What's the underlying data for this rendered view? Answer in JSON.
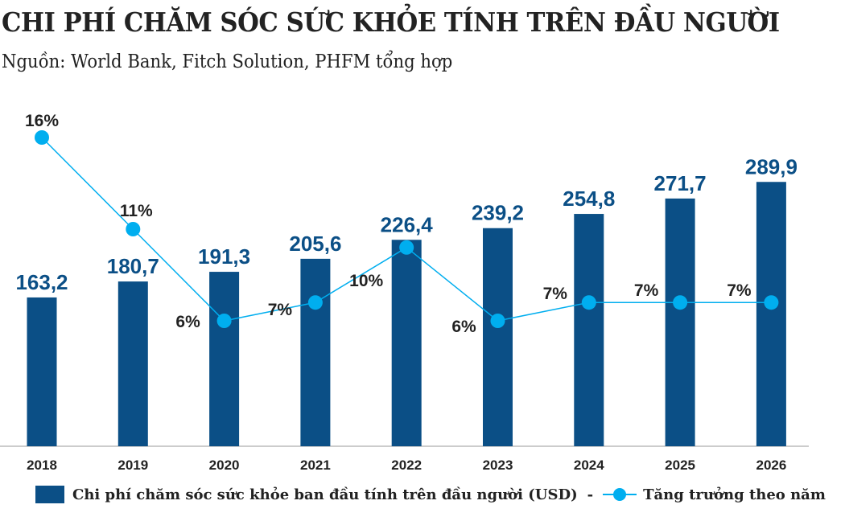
{
  "title": "CHI PHÍ CHĂM SÓC SỨC KHỎE TÍNH TRÊN ĐẦU NGƯỜI",
  "subtitle": "Nguồn: World Bank, Fitch Solution, PHFM tổng hợp",
  "colors": {
    "bar": "#0b4f86",
    "line": "#00aeef",
    "axis": "#999999"
  },
  "chart_data": {
    "type": "bar+line",
    "categories": [
      "2018",
      "2019",
      "2020",
      "2021",
      "2022",
      "2023",
      "2024",
      "2025",
      "2026"
    ],
    "series": [
      {
        "name": "Chi phí chăm sóc sức khỏe ban đầu tính trên đầu người (USD)",
        "type": "bar",
        "values": [
          163.2,
          180.7,
          191.3,
          205.6,
          226.4,
          239.2,
          254.8,
          271.7,
          289.9
        ],
        "labels": [
          "163,2",
          "180,7",
          "191,3",
          "205,6",
          "226,4",
          "239,2",
          "254,8",
          "271,7",
          "289,9"
        ]
      },
      {
        "name": "Tăng trưởng theo năm",
        "type": "line",
        "values": [
          16,
          11,
          6,
          7,
          10,
          6,
          7,
          7,
          7
        ],
        "labels": [
          "16%",
          "11%",
          "6%",
          "7%",
          "10%",
          "6%",
          "7%",
          "7%",
          "7%"
        ]
      }
    ],
    "legend_position": "bottom",
    "grid": false
  },
  "legend": {
    "bar_label": "Chi phí chăm sóc sức khỏe ban đầu tính trên đầu người (USD)",
    "separator": "-",
    "line_label": "Tăng trưởng theo năm"
  }
}
